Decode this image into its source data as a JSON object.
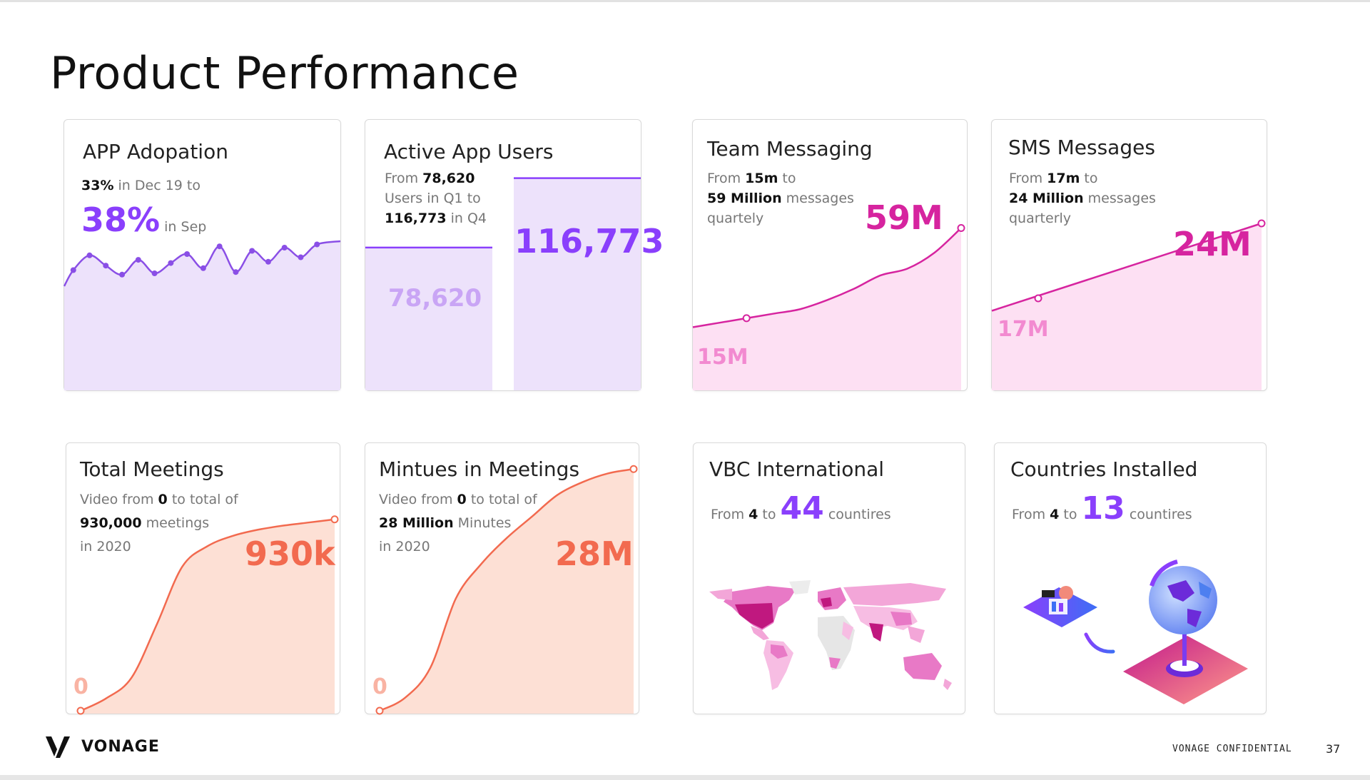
{
  "page": {
    "title": "Product Performance",
    "brand": "VONAGE",
    "confidential": "VONAGE CONFIDENTIAL",
    "page_number": "37"
  },
  "colors": {
    "purple": "#8a3ffc",
    "purple_fill": "#ede2fb",
    "magenta": "#d6249f",
    "pink_fill": "#fde0f3",
    "coral": "#f26a4f",
    "coral_fill": "#fde0d5"
  },
  "cards": {
    "app_adoption": {
      "title": "APP Adopation",
      "start_value": "33%",
      "start_text": "in Dec 19 to",
      "end_value": "38%",
      "end_text": "in Sep"
    },
    "active_users": {
      "title": "Active App Users",
      "line1_pre": "From",
      "line1_val": "78,620",
      "line2": "Users in Q1 to",
      "line3_val": "116,773",
      "line3_post": "in Q4",
      "bar1_label": "78,620",
      "bar2_label": "116,773"
    },
    "team_messaging": {
      "title": "Team Messaging",
      "line1_pre": "From",
      "line1_val": "15m",
      "line1_post": "to",
      "line2_val": "59 Million",
      "line2_post": "messages",
      "line3": "quartely",
      "end_label": "59M",
      "start_label": "15M"
    },
    "sms": {
      "title": "SMS Messages",
      "line1_pre": "From",
      "line1_val": "17m",
      "line1_post": "to",
      "line2_val": "24 Million",
      "line2_post": "messages",
      "line3": "quarterly",
      "end_label": "24M",
      "start_label": "17M"
    },
    "total_meetings": {
      "title": "Total Meetings",
      "line1_pre": "Video from",
      "line1_val": "0",
      "line1_post": "to total of",
      "line2_val": "930,000",
      "line2_post": "meetings",
      "line3": "in 2020",
      "end_label": "930k",
      "start_label": "0"
    },
    "minutes_meetings": {
      "title": "Mintues in Meetings",
      "line1_pre": "Video from",
      "line1_val": "0",
      "line1_post": "to total of",
      "line2_val": "28 Million",
      "line2_post": "Minutes",
      "line3": "in 2020",
      "end_label": "28M",
      "start_label": "0"
    },
    "vbc_international": {
      "title": "VBC International",
      "pre": "From",
      "from_val": "4",
      "to": "to",
      "big": "44",
      "post": "countires"
    },
    "countries_installed": {
      "title": "Countries Installed",
      "pre": "From",
      "from_val": "4",
      "to": "to",
      "big": "13",
      "post": "countires"
    }
  },
  "chart_data": [
    {
      "type": "area",
      "name": "app_adoption",
      "values": [
        0.55,
        0.78,
        0.62,
        0.48,
        0.71,
        0.5,
        0.66,
        0.8,
        0.58,
        0.92,
        0.52,
        0.85,
        0.68,
        0.9,
        0.75,
        0.95
      ],
      "ylim": [
        0,
        1
      ]
    },
    {
      "type": "bar",
      "name": "active_users",
      "categories": [
        "Q1",
        "Q4"
      ],
      "values": [
        78620,
        116773
      ],
      "ylim": [
        0,
        141000
      ]
    },
    {
      "type": "area",
      "name": "team_messaging",
      "x": [
        0,
        1,
        2,
        3,
        4,
        5,
        6,
        7,
        8,
        9,
        10
      ],
      "values": [
        15,
        17,
        19,
        21,
        23,
        27,
        32,
        38,
        41,
        48,
        59
      ],
      "ylim": [
        12,
        62
      ]
    },
    {
      "type": "area",
      "name": "sms",
      "x": [
        0,
        1
      ],
      "values": [
        17,
        24
      ],
      "ylim": [
        14,
        26
      ]
    },
    {
      "type": "area",
      "name": "total_meetings",
      "x": [
        0,
        1,
        2,
        3,
        4,
        5,
        6,
        7,
        8,
        9,
        10
      ],
      "values": [
        0,
        60,
        160,
        420,
        700,
        800,
        850,
        880,
        900,
        915,
        930
      ],
      "ylim": [
        0,
        1300
      ]
    },
    {
      "type": "area",
      "name": "minutes_meetings",
      "x": [
        0,
        1,
        2,
        3,
        4,
        5,
        6,
        7,
        8,
        9,
        10
      ],
      "values": [
        0,
        1.5,
        5,
        13,
        17,
        20,
        22.5,
        25,
        26.5,
        27.5,
        28
      ],
      "ylim": [
        0,
        31
      ]
    }
  ]
}
